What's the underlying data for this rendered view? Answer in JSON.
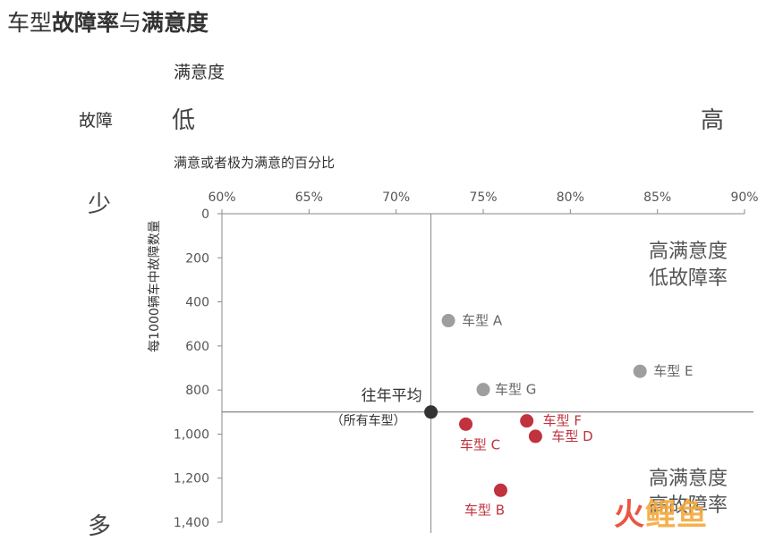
{
  "title": {
    "prefix": "车型",
    "bold1": "故障率",
    "mid": "与",
    "bold2": "满意度"
  },
  "headers": {
    "satisfaction": "满意度",
    "fault": "故障",
    "sat_low": "低",
    "sat_high": "高",
    "fault_few": "少",
    "fault_many": "多"
  },
  "colors": {
    "gray": "#9e9e9e",
    "red": "#c0323d",
    "average": "#333333",
    "axis": "#888888"
  },
  "watermark": {
    "part1": "火",
    "part2": "鲤鱼"
  },
  "chart_data": {
    "type": "scatter",
    "xlabel": "满意或者极为满意的百分比",
    "ylabel": "每1000辆车中故障数量",
    "xlim": [
      60,
      90
    ],
    "ylim": [
      0,
      1400
    ],
    "y_inverted": true,
    "x_ticks": [
      "60%",
      "65%",
      "70%",
      "75%",
      "80%",
      "85%",
      "90%"
    ],
    "x_tick_values": [
      60,
      65,
      70,
      75,
      80,
      85,
      90
    ],
    "y_ticks": [
      "0",
      "200",
      "400",
      "600",
      "800",
      "1,000",
      "1,200",
      "1,400"
    ],
    "y_tick_values": [
      0,
      200,
      400,
      600,
      800,
      1000,
      1200,
      1400
    ],
    "points": [
      {
        "label": "车型 A",
        "x": 73,
        "y": 485,
        "group": "gray"
      },
      {
        "label": "车型 G",
        "x": 75,
        "y": 798,
        "group": "gray"
      },
      {
        "label": "车型 E",
        "x": 84,
        "y": 715,
        "group": "gray"
      },
      {
        "label": "车型 C",
        "x": 74,
        "y": 955,
        "group": "red"
      },
      {
        "label": "车型 F",
        "x": 77.5,
        "y": 940,
        "group": "red"
      },
      {
        "label": "车型 D",
        "x": 78,
        "y": 1010,
        "group": "red"
      },
      {
        "label": "车型 B",
        "x": 76,
        "y": 1255,
        "group": "red"
      }
    ],
    "average": {
      "label": "往年平均",
      "sublabel": "（所有车型）",
      "x": 72,
      "y": 900
    },
    "quadrants": {
      "top_right": [
        "高满意度",
        "低故障率"
      ],
      "bottom_right": [
        "高满意度",
        "高故障率"
      ]
    }
  }
}
